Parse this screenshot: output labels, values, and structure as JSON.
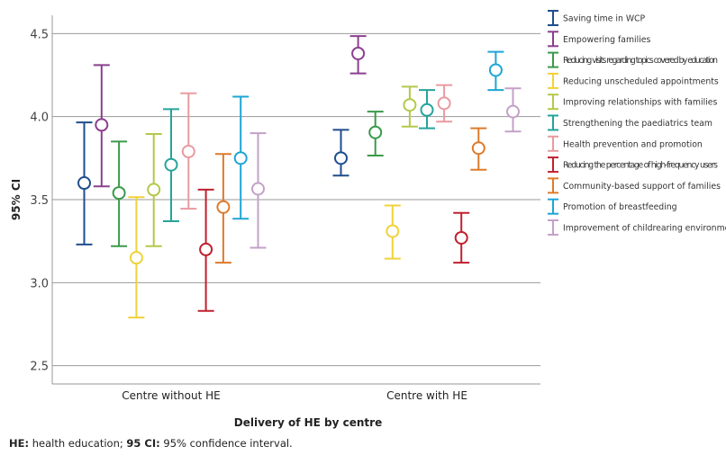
{
  "chart_data": {
    "type": "errorbar",
    "xlabel": "Delivery of HE by centre",
    "ylabel": "95% CI",
    "ylim": [
      2.39,
      4.61
    ],
    "yticks": [
      2.5,
      3.0,
      3.5,
      4.0,
      4.5
    ],
    "ytick_labels": [
      "2.5",
      "3.0",
      "3.5",
      "4.0",
      "4.5"
    ],
    "grid": true,
    "legend_position": "right",
    "categories": [
      "Centre without HE",
      "Centre with HE"
    ],
    "series": [
      {
        "name": "Saving time in WCP",
        "color": "#1f4e8c",
        "mean": [
          3.6,
          3.75
        ],
        "lower": [
          3.23,
          3.645
        ],
        "upper": [
          3.965,
          3.92
        ]
      },
      {
        "name": "Empowering families",
        "color": "#8b3f8f",
        "mean": [
          3.95,
          4.38
        ],
        "lower": [
          3.58,
          4.26
        ],
        "upper": [
          4.31,
          4.485
        ]
      },
      {
        "name": "Reducing visits regarding topics covered by education",
        "color": "#3a9a4a",
        "mean": [
          3.54,
          3.905
        ],
        "lower": [
          3.22,
          3.765
        ],
        "upper": [
          3.85,
          4.03
        ]
      },
      {
        "name": "Reducing unscheduled appointments",
        "color": "#f0d23a",
        "mean": [
          3.15,
          3.31
        ],
        "lower": [
          2.79,
          3.145
        ],
        "upper": [
          3.515,
          3.465
        ]
      },
      {
        "name": "Improving relationships with families",
        "color": "#b5c84a",
        "mean": [
          3.56,
          4.07
        ],
        "lower": [
          3.22,
          3.94
        ],
        "upper": [
          3.895,
          4.18
        ]
      },
      {
        "name": "Strengthening the paediatrics team",
        "color": "#26a39a",
        "mean": [
          3.71,
          4.04
        ],
        "lower": [
          3.37,
          3.93
        ],
        "upper": [
          4.045,
          4.16
        ]
      },
      {
        "name": "Health prevention and promotion",
        "color": "#e89aa0",
        "mean": [
          3.79,
          4.08
        ],
        "lower": [
          3.445,
          3.97
        ],
        "upper": [
          4.14,
          4.19
        ]
      },
      {
        "name": "Reducing the percentage of high-frequency users",
        "color": "#c0202e",
        "mean": [
          3.2,
          3.27
        ],
        "lower": [
          2.83,
          3.12
        ],
        "upper": [
          3.56,
          3.42
        ]
      },
      {
        "name": "Community-based support of families",
        "color": "#de7a2a",
        "mean": [
          3.455,
          3.81
        ],
        "lower": [
          3.12,
          3.68
        ],
        "upper": [
          3.775,
          3.93
        ]
      },
      {
        "name": "Promotion of breastfeeding",
        "color": "#1ea5d6",
        "mean": [
          3.75,
          4.28
        ],
        "lower": [
          3.385,
          4.16
        ],
        "upper": [
          4.12,
          4.39
        ]
      },
      {
        "name": "Improvement of childrearing environment",
        "color": "#c4a0c8",
        "mean": [
          3.565,
          4.03
        ],
        "lower": [
          3.21,
          3.91
        ],
        "upper": [
          3.9,
          4.17
        ]
      }
    ]
  },
  "footnote": {
    "he_abbr": "HE:",
    "he_text": " health education; ",
    "ci_abbr": "95 CI:",
    "ci_text": " 95% confidence interval."
  }
}
